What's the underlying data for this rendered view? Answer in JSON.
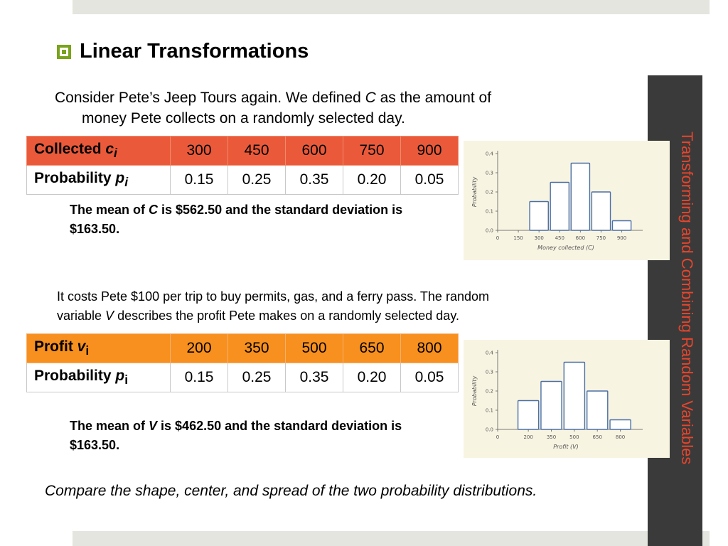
{
  "slide": {
    "side_title": "Transforming and Combining Random Variables",
    "heading": "Linear Transformations",
    "intro_line1_a": "Consider Pete’s Jeep Tours again. We defined ",
    "intro_var": "C",
    "intro_line1_b": " as the amount of",
    "intro_line2": "money Pete collects on a randomly selected day.",
    "mean1_a": "The mean of ",
    "mean1_var": "C",
    "mean1_b": " is $562.50 and the standard deviation is $163.50.",
    "para2_line1": "It costs Pete $100 per trip to buy permits, gas, and a ferry pass.  The random",
    "para2_a": "variable ",
    "para2_var": "V",
    "para2_b": " describes the profit Pete makes on a randomly selected day.",
    "mean2_a": "The mean of ",
    "mean2_var": "V",
    "mean2_b": " is $462.50 and the standard deviation is $163.50.",
    "compare": "Compare the shape, center, and spread of the two probability distributions."
  },
  "table1": {
    "row1_label": "Collected ",
    "row1_var": "c",
    "row1_sub": "i",
    "row2_label": "Probability ",
    "row2_var": "p",
    "row2_sub": "i",
    "values": [
      "300",
      "450",
      "600",
      "750",
      "900"
    ],
    "probs": [
      "0.15",
      "0.25",
      "0.35",
      "0.20",
      "0.05"
    ]
  },
  "table2": {
    "row1_label": "Profit ",
    "row1_var": "v",
    "row1_sub": "i",
    "row2_label": "Probability ",
    "row2_var": "p",
    "row2_sub": "i",
    "values": [
      "200",
      "350",
      "500",
      "650",
      "800"
    ],
    "probs": [
      "0.15",
      "0.25",
      "0.35",
      "0.20",
      "0.05"
    ]
  },
  "colors": {
    "table1_header": "#ea5a3a",
    "table2_header": "#f7901e",
    "bullet": "#7aa31c",
    "side_title": "#e8452c"
  },
  "chart_data": [
    {
      "type": "bar",
      "xlabel": "Money collected (C)",
      "ylabel": "Probability",
      "ylim": [
        0,
        0.4
      ],
      "yticks": [
        "0.0",
        "0.1",
        "0.2",
        "0.3",
        "0.4"
      ],
      "xticks": [
        "0",
        "150",
        "300",
        "450",
        "600",
        "750",
        "900"
      ],
      "xtick_values": [
        0,
        150,
        300,
        450,
        600,
        750,
        900
      ],
      "categories": [
        300,
        450,
        600,
        750,
        900
      ],
      "values": [
        0.15,
        0.25,
        0.35,
        0.2,
        0.05
      ]
    },
    {
      "type": "bar",
      "xlabel": "Profit (V)",
      "ylabel": "Probability",
      "ylim": [
        0,
        0.4
      ],
      "yticks": [
        "0.0",
        "0.1",
        "0.2",
        "0.3",
        "0.4"
      ],
      "xticks": [
        "0",
        "200",
        "350",
        "500",
        "650",
        "800"
      ],
      "xtick_values": [
        0,
        200,
        350,
        500,
        650,
        800
      ],
      "categories": [
        200,
        350,
        500,
        650,
        800
      ],
      "values": [
        0.15,
        0.25,
        0.35,
        0.2,
        0.05
      ]
    }
  ]
}
